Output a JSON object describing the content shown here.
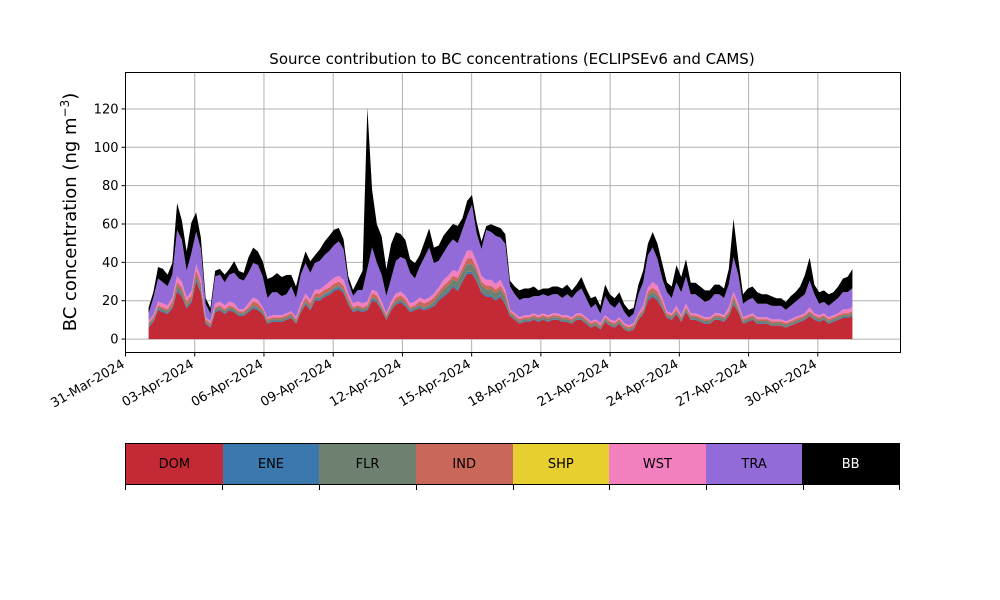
{
  "chart_data": {
    "type": "area",
    "stacked": true,
    "title": "Source contribution to BC concentrations (ECLIPSEv6 and CAMS)",
    "ylabel": "BC concentration (ng m",
    "ylabel_sup": "−3",
    "ylabel_close": ")",
    "xlabel": "",
    "ylim": [
      -7,
      139
    ],
    "yticks": [
      0,
      20,
      40,
      60,
      80,
      100,
      120
    ],
    "x_start": "2024-04-01",
    "x_end": "2024-05-01",
    "xlim": [
      "2024-03-31T00:00",
      "2024-05-03T14:00"
    ],
    "xticks": [
      "31-Mar-2024",
      "03-Apr-2024",
      "06-Apr-2024",
      "09-Apr-2024",
      "12-Apr-2024",
      "15-Apr-2024",
      "18-Apr-2024",
      "21-Apr-2024",
      "24-Apr-2024",
      "27-Apr-2024",
      "30-Apr-2024"
    ],
    "xtick_dates": [
      "2024-03-31",
      "2024-04-03",
      "2024-04-06",
      "2024-04-09",
      "2024-04-12",
      "2024-04-15",
      "2024-04-18",
      "2024-04-21",
      "2024-04-24",
      "2024-04-27",
      "2024-04-30"
    ],
    "grid": true,
    "series": [
      {
        "name": "DOM",
        "color": "#c42a36",
        "values": [
          6,
          9,
          15,
          14,
          13,
          16,
          25,
          22,
          16,
          19,
          30,
          24,
          8,
          6,
          14,
          15,
          13,
          15,
          14,
          12,
          12,
          14,
          16,
          15,
          13,
          8,
          9,
          9,
          9,
          10,
          11,
          8,
          14,
          18,
          15,
          20,
          20,
          22,
          23,
          25,
          26,
          24,
          18,
          14,
          15,
          14,
          15,
          20,
          19,
          15,
          10,
          15,
          18,
          19,
          17,
          14,
          15,
          16,
          15,
          16,
          17,
          20,
          22,
          24,
          27,
          25,
          30,
          34,
          34,
          30,
          24,
          22,
          22,
          20,
          22,
          18,
          12,
          10,
          8,
          9,
          9,
          10,
          9,
          10,
          9,
          10,
          10,
          9,
          9,
          8,
          10,
          10,
          8,
          6,
          7,
          5,
          9,
          7,
          6,
          8,
          5,
          4,
          5,
          10,
          13,
          20,
          22,
          20,
          16,
          11,
          10,
          13,
          9,
          14,
          10,
          10,
          9,
          8,
          8,
          10,
          10,
          9,
          12,
          18,
          14,
          8,
          9,
          10,
          8,
          8,
          8,
          7,
          7,
          7,
          6,
          7,
          8,
          9,
          10,
          12,
          10,
          9,
          10,
          8,
          9,
          10,
          11,
          11,
          12
        ]
      },
      {
        "name": "ENE",
        "color": "#3a78ad",
        "values": [
          0.4,
          0.5,
          0.6,
          0.6,
          0.6,
          0.7,
          0.9,
          0.8,
          0.7,
          0.8,
          1,
          0.9,
          0.4,
          0.3,
          0.6,
          0.6,
          0.6,
          0.6,
          0.6,
          0.5,
          0.5,
          0.6,
          0.7,
          0.6,
          0.6,
          0.4,
          0.4,
          0.4,
          0.4,
          0.4,
          0.5,
          0.4,
          0.6,
          0.7,
          0.6,
          0.8,
          0.8,
          0.8,
          0.9,
          1,
          1,
          0.9,
          0.7,
          0.6,
          0.6,
          0.6,
          0.6,
          0.8,
          0.8,
          0.6,
          0.5,
          0.6,
          0.7,
          0.8,
          0.7,
          0.6,
          0.6,
          0.7,
          0.6,
          0.7,
          0.7,
          0.8,
          0.9,
          1,
          1,
          1,
          1,
          1.1,
          1.1,
          1,
          0.9,
          0.9,
          0.9,
          0.8,
          0.9,
          0.7,
          0.5,
          0.4,
          0.4,
          0.4,
          0.4,
          0.4,
          0.4,
          0.4,
          0.4,
          0.4,
          0.4,
          0.4,
          0.4,
          0.4,
          0.4,
          0.4,
          0.4,
          0.3,
          0.3,
          0.3,
          0.4,
          0.3,
          0.3,
          0.4,
          0.3,
          0.2,
          0.3,
          0.4,
          0.6,
          0.8,
          0.8,
          0.8,
          0.6,
          0.5,
          0.4,
          0.5,
          0.4,
          0.6,
          0.4,
          0.4,
          0.4,
          0.4,
          0.4,
          0.4,
          0.4,
          0.4,
          0.5,
          0.7,
          0.6,
          0.4,
          0.4,
          0.4,
          0.4,
          0.4,
          0.4,
          0.3,
          0.3,
          0.3,
          0.3,
          0.3,
          0.4,
          0.4,
          0.4,
          0.5,
          0.4,
          0.4,
          0.4,
          0.4,
          0.4,
          0.4,
          0.5,
          0.5,
          0.5
        ]
      },
      {
        "name": "FLR",
        "color": "#6e8070",
        "values": [
          1,
          1,
          1,
          1,
          1,
          1,
          2,
          2,
          1,
          1,
          2,
          2,
          1,
          1,
          1,
          1,
          1,
          1,
          1,
          1,
          1,
          1,
          1,
          1,
          1,
          1,
          1,
          1,
          1,
          1,
          1,
          1,
          1,
          1,
          1,
          1,
          1,
          1,
          1,
          1,
          1,
          1,
          1,
          1,
          1,
          1,
          1,
          1,
          1,
          1,
          1,
          1,
          1,
          1,
          1,
          1,
          1,
          1,
          1,
          1,
          2,
          2,
          3,
          3,
          3,
          4,
          4,
          4,
          4,
          4,
          3,
          3,
          3,
          3,
          3,
          3,
          1,
          1,
          1,
          1,
          1,
          1,
          1,
          1,
          1,
          1,
          1,
          1,
          1,
          1,
          1,
          1,
          1,
          1,
          1,
          1,
          1,
          1,
          1,
          1,
          1,
          1,
          1,
          1,
          1,
          2,
          2,
          2,
          1,
          1,
          1,
          1,
          1,
          1,
          1,
          1,
          1,
          1,
          1,
          1,
          1,
          1,
          1,
          2,
          1,
          1,
          1,
          1,
          1,
          1,
          1,
          1,
          1,
          1,
          1,
          1,
          1,
          1,
          1,
          1,
          1,
          1,
          1,
          1,
          1,
          1,
          1,
          1,
          1
        ]
      },
      {
        "name": "IND",
        "color": "#c8675a",
        "values": [
          1,
          1,
          1,
          1,
          1,
          2,
          2,
          2,
          2,
          2,
          3,
          2,
          1,
          1,
          1,
          1,
          1,
          1,
          1,
          1,
          1,
          1,
          2,
          2,
          1,
          1,
          1,
          1,
          1,
          1,
          1,
          1,
          1,
          2,
          2,
          2,
          2,
          2,
          2,
          2,
          2,
          2,
          2,
          1,
          1,
          1,
          1,
          2,
          2,
          1,
          1,
          1,
          2,
          2,
          2,
          1,
          1,
          2,
          2,
          2,
          2,
          2,
          2,
          2,
          2,
          2,
          2,
          3,
          3,
          2,
          2,
          2,
          2,
          2,
          2,
          2,
          1,
          1,
          1,
          1,
          1,
          1,
          1,
          1,
          1,
          1,
          1,
          1,
          1,
          1,
          1,
          1,
          1,
          1,
          1,
          1,
          1,
          1,
          1,
          1,
          1,
          1,
          1,
          1,
          1,
          2,
          2,
          2,
          2,
          1,
          1,
          1,
          1,
          1,
          1,
          1,
          1,
          1,
          1,
          1,
          1,
          1,
          1,
          2,
          1,
          1,
          1,
          1,
          1,
          1,
          1,
          1,
          1,
          1,
          1,
          1,
          1,
          1,
          1,
          1,
          1,
          1,
          1,
          1,
          1,
          1,
          1,
          1,
          1
        ]
      },
      {
        "name": "SHP",
        "color": "#e6cf2e",
        "values": [
          0,
          0,
          0,
          0,
          0,
          0,
          0,
          0,
          0,
          0,
          0,
          0,
          0,
          0,
          0,
          0,
          0,
          0,
          0,
          0,
          0,
          0,
          0,
          0,
          0,
          0,
          0,
          0,
          0,
          0,
          0,
          0,
          0,
          0,
          0,
          0,
          0,
          0,
          0,
          0,
          0,
          0,
          0,
          0,
          0,
          0,
          0,
          0,
          0,
          0,
          0,
          0,
          0,
          0,
          0,
          0,
          0,
          0,
          0,
          0,
          0,
          0,
          0,
          0,
          0,
          0,
          0,
          0,
          0,
          0,
          0,
          0,
          0,
          0,
          0,
          0,
          0,
          0,
          0,
          0,
          0,
          0,
          0,
          0,
          0,
          0,
          0,
          0,
          0,
          0,
          0,
          0,
          0,
          0,
          0,
          0,
          0,
          0,
          0,
          0,
          0,
          0,
          0,
          0,
          0,
          0,
          0,
          0,
          0,
          0,
          0,
          0,
          0,
          0,
          0,
          0,
          0,
          0,
          0,
          0,
          0,
          0,
          0,
          0,
          0,
          0,
          0,
          0,
          0,
          0,
          0,
          0,
          0,
          0,
          0,
          0,
          0,
          0,
          0,
          0,
          0,
          0,
          0,
          0,
          0,
          0,
          0,
          0,
          0
        ]
      },
      {
        "name": "WST",
        "color": "#f27fbe",
        "values": [
          1,
          1,
          2,
          2,
          2,
          2,
          3,
          3,
          2,
          2,
          3,
          3,
          1,
          1,
          2,
          2,
          2,
          2,
          2,
          1,
          1,
          2,
          2,
          2,
          1,
          1,
          1,
          1,
          1,
          1,
          1,
          1,
          2,
          2,
          2,
          2,
          2,
          2,
          3,
          3,
          3,
          3,
          2,
          2,
          2,
          2,
          2,
          2,
          2,
          2,
          1,
          2,
          2,
          2,
          2,
          2,
          2,
          2,
          2,
          2,
          2,
          2,
          3,
          3,
          3,
          3,
          4,
          4,
          4,
          3,
          3,
          3,
          3,
          3,
          3,
          2,
          1,
          1,
          1,
          1,
          1,
          1,
          1,
          1,
          1,
          1,
          1,
          1,
          1,
          1,
          1,
          1,
          1,
          1,
          1,
          1,
          1,
          1,
          1,
          1,
          1,
          1,
          1,
          1,
          2,
          2,
          3,
          3,
          2,
          1,
          1,
          2,
          1,
          2,
          1,
          1,
          1,
          1,
          1,
          1,
          1,
          1,
          2,
          2,
          2,
          1,
          1,
          1,
          1,
          1,
          1,
          1,
          1,
          1,
          1,
          1,
          1,
          1,
          1,
          2,
          1,
          1,
          1,
          1,
          1,
          1,
          2,
          2,
          2
        ]
      },
      {
        "name": "TRA",
        "color": "#936bd9",
        "values": [
          4,
          9,
          12,
          11,
          10,
          12,
          24,
          22,
          14,
          20,
          17,
          15,
          7,
          4,
          14,
          14,
          12,
          14,
          16,
          16,
          15,
          16,
          18,
          18,
          16,
          10,
          12,
          12,
          10,
          10,
          13,
          10,
          15,
          16,
          14,
          14,
          15,
          16,
          16,
          17,
          18,
          16,
          6,
          4,
          6,
          7,
          17,
          22,
          15,
          14,
          9,
          12,
          17,
          18,
          19,
          16,
          12,
          16,
          22,
          26,
          16,
          14,
          14,
          16,
          16,
          15,
          16,
          18,
          24,
          15,
          14,
          26,
          25,
          25,
          22,
          24,
          12,
          10,
          9,
          9,
          9,
          9,
          10,
          10,
          10,
          10,
          10,
          9,
          11,
          10,
          11,
          13,
          10,
          7,
          8,
          5,
          10,
          8,
          7,
          8,
          6,
          4,
          5,
          10,
          12,
          17,
          18,
          14,
          10,
          10,
          8,
          12,
          12,
          14,
          10,
          10,
          9,
          8,
          9,
          10,
          10,
          9,
          12,
          18,
          15,
          7,
          8,
          8,
          7,
          7,
          7,
          7,
          7,
          7,
          6,
          7,
          8,
          9,
          10,
          14,
          10,
          6,
          6,
          6,
          7,
          8,
          9,
          9,
          10
        ]
      },
      {
        "name": "BB",
        "color": "#000000",
        "values": [
          3,
          3,
          6,
          7,
          6,
          6,
          14,
          10,
          10,
          16,
          10,
          6,
          3,
          3,
          3,
          3,
          4,
          3,
          6,
          4,
          4,
          8,
          8,
          7,
          8,
          10,
          8,
          10,
          10,
          10,
          6,
          6,
          4,
          6,
          6,
          4,
          6,
          7,
          8,
          8,
          7,
          5,
          3,
          3,
          5,
          10,
          84,
          30,
          20,
          20,
          14,
          18,
          15,
          12,
          10,
          7,
          8,
          6,
          8,
          10,
          8,
          8,
          9,
          8,
          8,
          9,
          6,
          8,
          5,
          6,
          4,
          2,
          4,
          5,
          5,
          5,
          3,
          4,
          5,
          5,
          5,
          5,
          3,
          3,
          4,
          4,
          4,
          5,
          5,
          4,
          4,
          6,
          5,
          5,
          4,
          4,
          6,
          5,
          5,
          5,
          4,
          4,
          3,
          5,
          6,
          6,
          8,
          8,
          8,
          5,
          6,
          9,
          8,
          9,
          6,
          6,
          6,
          6,
          5,
          5,
          5,
          5,
          8,
          20,
          8,
          5,
          6,
          6,
          6,
          5,
          5,
          5,
          4,
          4,
          4,
          5,
          5,
          6,
          10,
          12,
          5,
          6,
          6,
          6,
          5,
          6,
          7,
          8,
          10
        ]
      }
    ],
    "legend_placement": "below",
    "legend_labels": [
      "DOM",
      "ENE",
      "FLR",
      "IND",
      "SHP",
      "WST",
      "TRA",
      "BB"
    ],
    "legend_text_colors": [
      "#000000",
      "#000000",
      "#000000",
      "#000000",
      "#000000",
      "#000000",
      "#000000",
      "#ffffff"
    ]
  }
}
